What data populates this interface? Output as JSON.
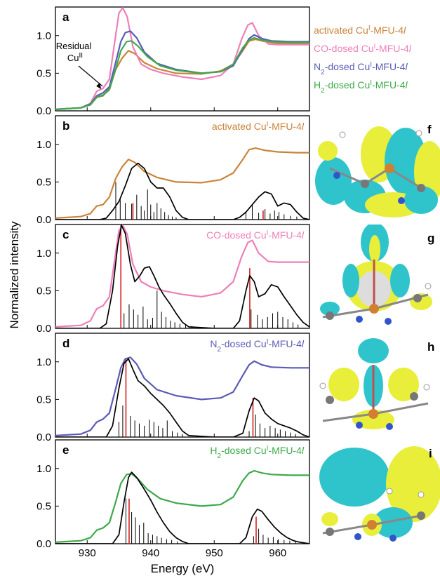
{
  "chart_data": [
    {
      "panel": "a",
      "type": "line",
      "xlabel": "Energy (eV)",
      "ylabel": "Normalized intensity",
      "xlim": [
        925,
        965
      ],
      "ylim": [
        0,
        1.38
      ],
      "yticks": [
        "0.0",
        "0.5",
        "1.0"
      ],
      "annotation": {
        "line1": "Residual",
        "line2": "Cu",
        "sup": "II",
        "x": 932.2,
        "y": 0.29
      },
      "legend": [
        {
          "name": "activated Cu",
          "sup": "I",
          "tail": "-MFU-4",
          "italic": "l",
          "color": "#c8843a"
        },
        {
          "name": "CO-dosed Cu",
          "sup": "I",
          "tail": "-MFU-4",
          "italic": "l",
          "color": "#ee7fb8"
        },
        {
          "name": "N",
          "sub": "2",
          "tail": "-dosed Cu",
          "sup": "I",
          "tail2": "-MFU-4",
          "italic": "l",
          "color": "#5b5bb5"
        },
        {
          "name": "H",
          "sub": "2",
          "tail": "-dosed Cu",
          "sup": "I",
          "tail2": "-MFU-4",
          "italic": "l",
          "color": "#3daa4a"
        }
      ],
      "series": [
        {
          "color": "#c8843a",
          "x": [
            925,
            929,
            930.5,
            931.5,
            932.5,
            933.5,
            934.5,
            935.5,
            936.5,
            937.5,
            939,
            941,
            944,
            948,
            951,
            953,
            954.5,
            955.5,
            956.5,
            958,
            960,
            963,
            965
          ],
          "y": [
            0.02,
            0.04,
            0.08,
            0.18,
            0.2,
            0.3,
            0.55,
            0.7,
            0.8,
            0.76,
            0.64,
            0.56,
            0.5,
            0.49,
            0.53,
            0.62,
            0.8,
            0.93,
            0.95,
            0.92,
            0.9,
            0.89,
            0.89
          ]
        },
        {
          "color": "#ee7fb8",
          "x": [
            925,
            929,
            930.5,
            931.5,
            932.5,
            933.5,
            934.3,
            935,
            935.6,
            936.3,
            937.2,
            938.5,
            940,
            942,
            945,
            948,
            951,
            953,
            954.3,
            955.3,
            956,
            957,
            958.5,
            960,
            963,
            965
          ],
          "y": [
            0.02,
            0.04,
            0.1,
            0.26,
            0.3,
            0.42,
            0.9,
            1.3,
            1.37,
            1.25,
            0.85,
            0.62,
            0.55,
            0.5,
            0.45,
            0.42,
            0.47,
            0.62,
            0.95,
            1.14,
            1.17,
            1.0,
            0.89,
            0.88,
            0.88,
            0.88
          ]
        },
        {
          "color": "#5b5bb5",
          "x": [
            925,
            929,
            930.5,
            931.5,
            932.5,
            933.5,
            934.5,
            935.3,
            936,
            936.8,
            937.8,
            939,
            941,
            944,
            948,
            951,
            953,
            954.5,
            955.5,
            956.3,
            957.5,
            959,
            962,
            965
          ],
          "y": [
            0.02,
            0.04,
            0.09,
            0.2,
            0.24,
            0.32,
            0.65,
            0.92,
            1.04,
            1.06,
            0.97,
            0.78,
            0.63,
            0.55,
            0.5,
            0.52,
            0.6,
            0.82,
            0.96,
            1.01,
            0.96,
            0.93,
            0.92,
            0.92
          ]
        },
        {
          "color": "#3daa4a",
          "x": [
            925,
            929,
            930.5,
            931.5,
            932.5,
            933.5,
            934.5,
            935.3,
            936.2,
            937,
            938,
            939.5,
            941.5,
            944,
            948,
            951,
            953,
            954.5,
            955.5,
            956.3,
            957.5,
            959,
            962,
            965
          ],
          "y": [
            0.02,
            0.04,
            0.08,
            0.18,
            0.21,
            0.28,
            0.56,
            0.8,
            0.92,
            0.93,
            0.86,
            0.72,
            0.6,
            0.54,
            0.5,
            0.52,
            0.62,
            0.84,
            0.94,
            0.97,
            0.94,
            0.92,
            0.91,
            0.91
          ]
        }
      ]
    },
    {
      "panel": "b",
      "type": "line",
      "xlim": [
        925,
        965
      ],
      "ylim": [
        0,
        1.38
      ],
      "yticks": [
        "0.0",
        "0.5",
        "1.0"
      ],
      "label": {
        "name": "activated Cu",
        "sup": "I",
        "tail": "-MFU-4",
        "italic": "l",
        "color": "#c8843a"
      },
      "series": [
        {
          "color": "#c8843a",
          "x": [
            925,
            929,
            930.5,
            931.5,
            932.5,
            933.5,
            934.5,
            935.5,
            936.5,
            937.5,
            939,
            941,
            944,
            948,
            951,
            953,
            954.5,
            955.5,
            956.5,
            958,
            960,
            963,
            965
          ],
          "y": [
            0.02,
            0.04,
            0.08,
            0.18,
            0.2,
            0.3,
            0.55,
            0.7,
            0.8,
            0.76,
            0.64,
            0.56,
            0.5,
            0.49,
            0.53,
            0.62,
            0.8,
            0.93,
            0.95,
            0.92,
            0.9,
            0.89,
            0.89
          ]
        },
        {
          "color": "#000000",
          "x": [
            925,
            932,
            933,
            934,
            935,
            936,
            937,
            938,
            939,
            940,
            941,
            942,
            943,
            944,
            945,
            946,
            950,
            953,
            954,
            955,
            956,
            957,
            958,
            959,
            960,
            961,
            962,
            963,
            964,
            965
          ],
          "y": [
            0,
            0,
            0.02,
            0.12,
            0.24,
            0.45,
            0.68,
            0.75,
            0.68,
            0.5,
            0.42,
            0.42,
            0.3,
            0.12,
            0.03,
            0,
            0,
            0,
            0.03,
            0.1,
            0.2,
            0.3,
            0.37,
            0.34,
            0.18,
            0.22,
            0.2,
            0.1,
            0.02,
            0
          ]
        }
      ],
      "sticks": {
        "x": [
          934.5,
          935.2,
          936,
          937,
          937.8,
          938.5,
          939,
          939.5,
          940,
          940.5,
          941,
          941.6,
          942.2,
          942.8,
          943.4,
          944,
          955,
          956,
          957,
          958,
          958.8,
          959.5,
          960.2,
          961,
          962,
          963
        ],
        "y": [
          0.5,
          0.28,
          0.22,
          0.21,
          0.33,
          0.18,
          0.12,
          0.4,
          0.2,
          0.1,
          0.22,
          0.15,
          0.1,
          0.06,
          0.04,
          0.03,
          0.1,
          0.2,
          0.09,
          0.14,
          0.08,
          0.12,
          0.1,
          0.07,
          0.05,
          0.04
        ]
      },
      "red_sticks": {
        "x": [
          937.2,
          957.7
        ],
        "y": [
          0.22,
          0.12
        ]
      }
    },
    {
      "panel": "c",
      "type": "line",
      "xlim": [
        925,
        965
      ],
      "ylim": [
        0,
        1.38
      ],
      "yticks": [
        "0.0",
        "0.5",
        "1.0"
      ],
      "label": {
        "name": "CO-dosed Cu",
        "sup": "I",
        "tail": "-MFU-4",
        "italic": "l",
        "color": "#ee7fb8"
      },
      "series": [
        {
          "color": "#ee7fb8",
          "x": [
            925,
            929,
            930.5,
            931.5,
            932.5,
            933.5,
            934.3,
            935,
            935.6,
            936.3,
            937.2,
            938.5,
            940,
            942,
            945,
            948,
            951,
            953,
            954.3,
            955.3,
            956,
            957,
            958.5,
            960,
            963,
            965
          ],
          "y": [
            0.02,
            0.04,
            0.1,
            0.26,
            0.3,
            0.42,
            0.9,
            1.3,
            1.37,
            1.25,
            0.85,
            0.62,
            0.55,
            0.5,
            0.45,
            0.42,
            0.47,
            0.62,
            0.95,
            1.14,
            1.17,
            1.0,
            0.89,
            0.88,
            0.88,
            0.88
          ]
        },
        {
          "color": "#000000",
          "x": [
            925,
            932,
            933,
            934,
            934.8,
            935.4,
            936,
            936.8,
            937.5,
            938.3,
            939,
            939.8,
            940.5,
            941.3,
            942,
            943,
            944,
            945,
            946,
            950,
            953,
            954,
            955,
            955.6,
            956.3,
            957,
            958,
            959,
            960,
            961,
            962,
            963,
            964,
            965
          ],
          "y": [
            0,
            0,
            0.06,
            0.5,
            1.1,
            1.37,
            1.26,
            0.85,
            0.62,
            0.7,
            0.8,
            0.82,
            0.7,
            0.55,
            0.45,
            0.33,
            0.2,
            0.08,
            0.02,
            0,
            0,
            0.1,
            0.5,
            0.7,
            0.62,
            0.42,
            0.46,
            0.58,
            0.55,
            0.42,
            0.3,
            0.18,
            0.08,
            0.02
          ]
        }
      ],
      "sticks": {
        "x": [
          935.8,
          936.6,
          937.3,
          938,
          938.8,
          939.5,
          940.3,
          941,
          941.7,
          942.4,
          943.1,
          943.8,
          944.6,
          945.5,
          946.5,
          955.8,
          956.8,
          957.6,
          958.4,
          959.2,
          960,
          960.8,
          961.6,
          962.4,
          963.2
        ],
        "y": [
          0.2,
          0.32,
          0.25,
          0.18,
          0.29,
          0.12,
          0.14,
          0.5,
          0.22,
          0.15,
          0.1,
          0.08,
          0.06,
          0.05,
          0.03,
          0.25,
          0.18,
          0.12,
          0.15,
          0.2,
          0.22,
          0.15,
          0.12,
          0.08,
          0.05
        ]
      },
      "red_sticks": {
        "x": [
          935.3,
          955.6
        ],
        "y": [
          1.37,
          0.8
        ]
      }
    },
    {
      "panel": "d",
      "type": "line",
      "xlim": [
        925,
        965
      ],
      "ylim": [
        0,
        1.38
      ],
      "yticks": [
        "0.0",
        "0.5",
        "1.0"
      ],
      "label": {
        "name": "N",
        "sub": "2",
        "tail": "-dosed Cu",
        "sup": "I",
        "tail2": "-MFU-4",
        "italic": "l",
        "color": "#5b5bb5"
      },
      "series": [
        {
          "color": "#5b5bb5",
          "x": [
            925,
            929,
            930.5,
            931.5,
            932.5,
            933.5,
            934.5,
            935.3,
            936,
            936.8,
            937.8,
            939,
            941,
            944,
            948,
            951,
            953,
            954.5,
            955.5,
            956.3,
            957.5,
            959,
            962,
            965
          ],
          "y": [
            0.02,
            0.04,
            0.09,
            0.2,
            0.24,
            0.32,
            0.65,
            0.92,
            1.04,
            1.06,
            0.97,
            0.78,
            0.63,
            0.55,
            0.5,
            0.52,
            0.6,
            0.82,
            0.96,
            1.01,
            0.96,
            0.93,
            0.92,
            0.92
          ]
        },
        {
          "color": "#000000",
          "x": [
            925,
            933,
            934,
            935,
            935.8,
            936.5,
            937.3,
            938,
            939,
            940,
            941,
            942,
            943,
            944,
            945,
            946,
            950,
            953,
            954.5,
            955.5,
            956.3,
            957,
            958,
            959,
            960,
            961,
            962,
            963,
            964,
            965
          ],
          "y": [
            0,
            0,
            0.15,
            0.65,
            0.98,
            1.04,
            0.88,
            0.75,
            0.68,
            0.58,
            0.5,
            0.42,
            0.32,
            0.2,
            0.08,
            0.02,
            0,
            0,
            0.05,
            0.35,
            0.52,
            0.48,
            0.32,
            0.24,
            0.18,
            0.15,
            0.12,
            0.08,
            0.03,
            0
          ]
        }
      ],
      "sticks": {
        "x": [
          935,
          935.6,
          936.8,
          937.5,
          938.2,
          939,
          939.8,
          940.5,
          941.2,
          941.9,
          942.6,
          943.4,
          944.2,
          945,
          955.5,
          956.5,
          957.2,
          958,
          958.8,
          959.6,
          960.4,
          961.2,
          962,
          962.8
        ],
        "y": [
          0.2,
          0.42,
          0.28,
          0.22,
          0.18,
          0.15,
          0.23,
          0.2,
          0.15,
          0.12,
          0.22,
          0.08,
          0.06,
          0.04,
          0.08,
          0.3,
          0.18,
          0.12,
          0.15,
          0.12,
          0.1,
          0.08,
          0.06,
          0.04
        ]
      },
      "red_sticks": {
        "x": [
          936.1,
          956.1
        ],
        "y": [
          1.04,
          0.52
        ]
      }
    },
    {
      "panel": "e",
      "type": "line",
      "xlim": [
        925,
        965
      ],
      "ylim": [
        0,
        1.38
      ],
      "yticks": [
        "0.0",
        "0.5",
        "1.0"
      ],
      "label": {
        "name": "H",
        "sub": "2",
        "tail": "-dosed Cu",
        "sup": "I",
        "tail2": "-MFU-4",
        "italic": "l",
        "color": "#3daa4a"
      },
      "series": [
        {
          "color": "#3daa4a",
          "x": [
            925,
            929,
            930.5,
            931.5,
            932.5,
            933.5,
            934.5,
            935.3,
            936.2,
            937,
            938,
            939.5,
            941.5,
            944,
            948,
            951,
            953,
            954.5,
            955.5,
            956.3,
            957.5,
            959,
            962,
            965
          ],
          "y": [
            0.02,
            0.04,
            0.08,
            0.18,
            0.21,
            0.28,
            0.56,
            0.8,
            0.92,
            0.93,
            0.86,
            0.72,
            0.6,
            0.54,
            0.5,
            0.52,
            0.62,
            0.84,
            0.94,
            0.97,
            0.94,
            0.92,
            0.91,
            0.91
          ]
        },
        {
          "color": "#000000",
          "x": [
            925,
            934,
            935,
            935.8,
            936.5,
            937,
            937.8,
            938.8,
            940,
            941,
            942,
            943,
            944,
            945,
            946,
            950,
            954,
            955,
            956,
            956.8,
            957.5,
            958.5,
            959.5,
            960.5,
            961.5,
            962.5,
            963.5,
            965
          ],
          "y": [
            0,
            0,
            0.12,
            0.55,
            0.88,
            0.95,
            0.88,
            0.75,
            0.58,
            0.42,
            0.28,
            0.16,
            0.08,
            0.03,
            0,
            0,
            0,
            0.08,
            0.36,
            0.46,
            0.43,
            0.32,
            0.22,
            0.14,
            0.08,
            0.04,
            0.02,
            0
          ]
        }
      ],
      "sticks": {
        "x": [
          936.1,
          937,
          937.6,
          938.2,
          938.9,
          939.6,
          940.3,
          941,
          941.7,
          942.5,
          943.3,
          944.2,
          956.2,
          957,
          957.7,
          958.5,
          959.3,
          960.1,
          961,
          961.9,
          962.8
        ],
        "y": [
          0.6,
          0.42,
          0.35,
          0.25,
          0.28,
          0.14,
          0.12,
          0.1,
          0.08,
          0.06,
          0.05,
          0.03,
          0.1,
          0.2,
          0.12,
          0.08,
          0.09,
          0.06,
          0.05,
          0.04,
          0.03
        ]
      },
      "red_sticks": {
        "x": [
          936.6,
          956.6
        ],
        "y": [
          0.6,
          0.36
        ]
      }
    }
  ],
  "xticks": [
    "930",
    "940",
    "950",
    "960"
  ],
  "xtick_values": [
    930,
    940,
    950,
    960
  ],
  "xlabel": "Energy (eV)",
  "ylabel": "Normalized intensity",
  "orbital_panels": [
    "f",
    "g",
    "h",
    "i"
  ]
}
